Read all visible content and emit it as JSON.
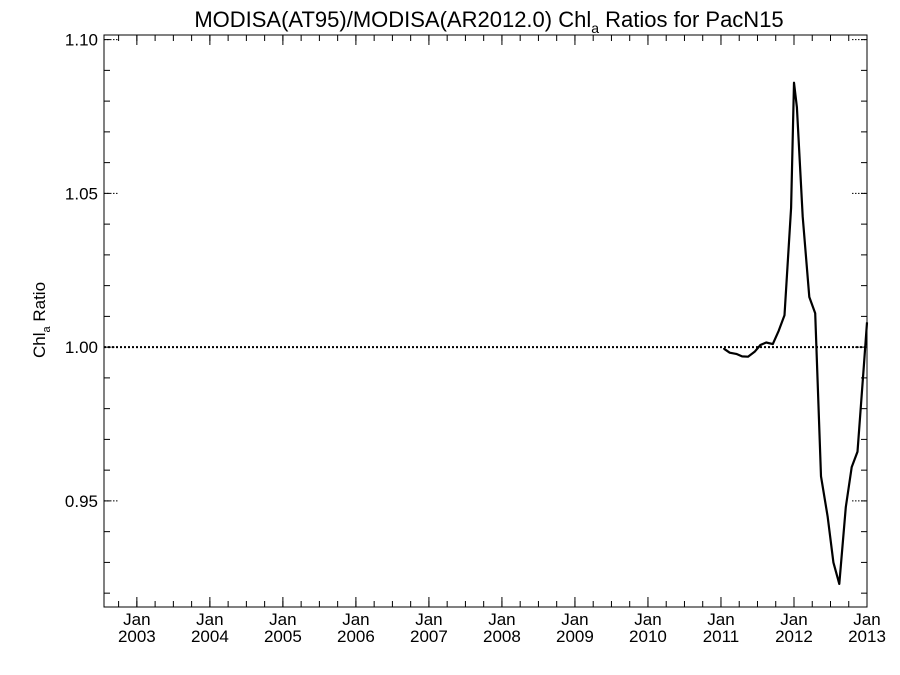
{
  "chart_data": {
    "type": "line",
    "title": {
      "prefix": "MODISA(AT95)/MODISA(AR2012.0)  Chl",
      "subscript": "a",
      "suffix": " Ratios for PacN15"
    },
    "ylabel": {
      "main": "Chl",
      "subscript": "a",
      "suffix": " Ratio"
    },
    "xlabel": "",
    "x_tick_labels": [
      {
        "top": "Jan",
        "bottom": "2003",
        "x": 2003.0
      },
      {
        "top": "Jan",
        "bottom": "2004",
        "x": 2004.0
      },
      {
        "top": "Jan",
        "bottom": "2005",
        "x": 2005.0
      },
      {
        "top": "Jan",
        "bottom": "2006",
        "x": 2006.0
      },
      {
        "top": "Jan",
        "bottom": "2007",
        "x": 2007.0
      },
      {
        "top": "Jan",
        "bottom": "2008",
        "x": 2008.0
      },
      {
        "top": "Jan",
        "bottom": "2009",
        "x": 2009.0
      },
      {
        "top": "Jan",
        "bottom": "2010",
        "x": 2010.0
      },
      {
        "top": "Jan",
        "bottom": "2011",
        "x": 2011.0
      },
      {
        "top": "Jan",
        "bottom": "2012",
        "x": 2012.0
      },
      {
        "top": "Jan",
        "bottom": "2013",
        "x": 2013.0
      }
    ],
    "y_tick_labels": [
      {
        "label": "0.95",
        "value": 0.95
      },
      {
        "label": "1.00",
        "value": 1.0
      },
      {
        "label": "1.05",
        "value": 1.05
      },
      {
        "label": "1.10",
        "value": 1.1
      }
    ],
    "xlim": [
      2002.55,
      2013.0
    ],
    "ylim": [
      0.9155,
      1.1015
    ],
    "y_minor_step": 0.01,
    "x_minor_per_year": 4,
    "reference_line": {
      "value": 1.0,
      "style": "dotted"
    },
    "grid": false,
    "series": [
      {
        "x": [
          2011.04,
          2011.12,
          2011.21,
          2011.29,
          2011.37,
          2011.46,
          2011.54,
          2011.62,
          2011.71,
          2011.79,
          2011.87,
          2011.96,
          2012.0,
          2012.04,
          2012.12,
          2012.21,
          2012.29,
          2012.37,
          2012.46,
          2012.54,
          2012.62,
          2012.71,
          2012.79,
          2012.87,
          2012.96,
          2013.0
        ],
        "y": [
          0.9995,
          0.9982,
          0.9978,
          0.997,
          0.9969,
          0.9985,
          1.0007,
          1.0015,
          1.001,
          1.0053,
          1.0104,
          1.0453,
          1.086,
          1.078,
          1.0424,
          1.0163,
          1.011,
          0.958,
          0.945,
          0.93,
          0.923,
          0.948,
          0.961,
          0.966,
          0.995,
          1.008
        ]
      }
    ]
  }
}
